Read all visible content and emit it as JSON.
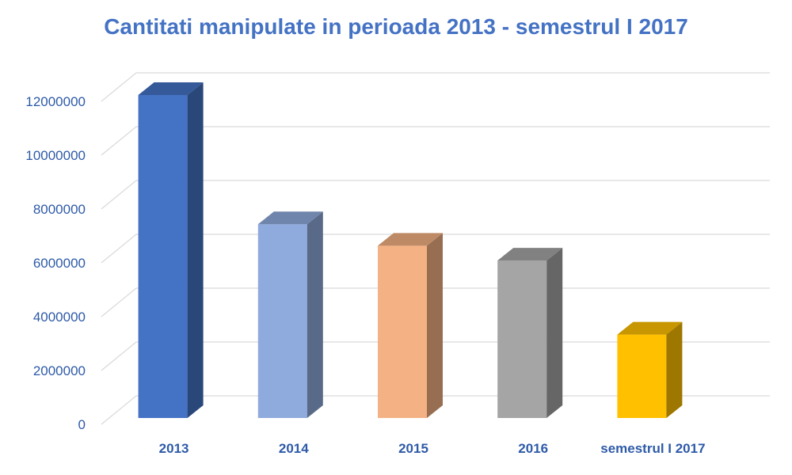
{
  "chart_data": {
    "type": "bar",
    "title": "Cantitati manipulate in perioada 2013 - semestrul I 2017",
    "categories": [
      "2013",
      "2014",
      "2015",
      "2016",
      "semestrul I 2017"
    ],
    "values": [
      12000000,
      7200000,
      6400000,
      5850000,
      3100000
    ],
    "colors": [
      "#4472c4",
      "#8faadc",
      "#f4b183",
      "#a5a5a5",
      "#ffc000"
    ],
    "ylim": [
      0,
      12000000
    ],
    "yticks": [
      "0",
      "2000000",
      "4000000",
      "6000000",
      "8000000",
      "10000000",
      "12000000"
    ],
    "grid": true,
    "legend": "none",
    "style": "3d-column"
  }
}
